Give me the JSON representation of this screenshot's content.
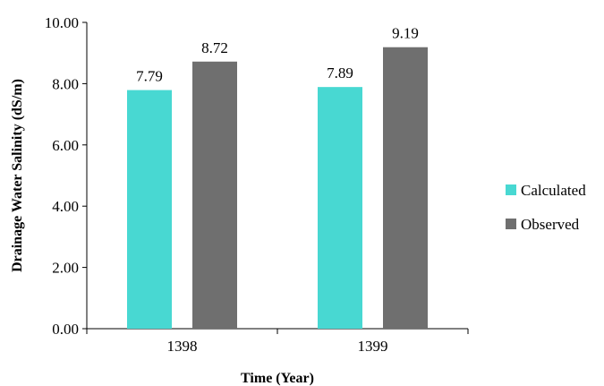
{
  "chart_data": {
    "type": "bar",
    "categories": [
      "1398",
      "1399"
    ],
    "series": [
      {
        "name": "Calculated",
        "values": [
          7.79,
          7.89
        ],
        "color": "#48d8d2"
      },
      {
        "name": "Observed",
        "values": [
          8.72,
          9.19
        ],
        "color": "#6f6f6f"
      }
    ],
    "data_labels": [
      [
        "7.79",
        "7.89"
      ],
      [
        "8.72",
        "9.19"
      ]
    ],
    "y_ticks": [
      0,
      2,
      4,
      6,
      8,
      10
    ],
    "y_tick_labels": [
      "0.00",
      "2.00",
      "4.00",
      "6.00",
      "8.00",
      "10.00"
    ],
    "ylim": [
      0,
      10
    ],
    "xlabel": "Time (Year)",
    "ylabel": "Drainage Water Salinity (dS/m)",
    "title": "",
    "grid": false,
    "legend_position": "right"
  }
}
